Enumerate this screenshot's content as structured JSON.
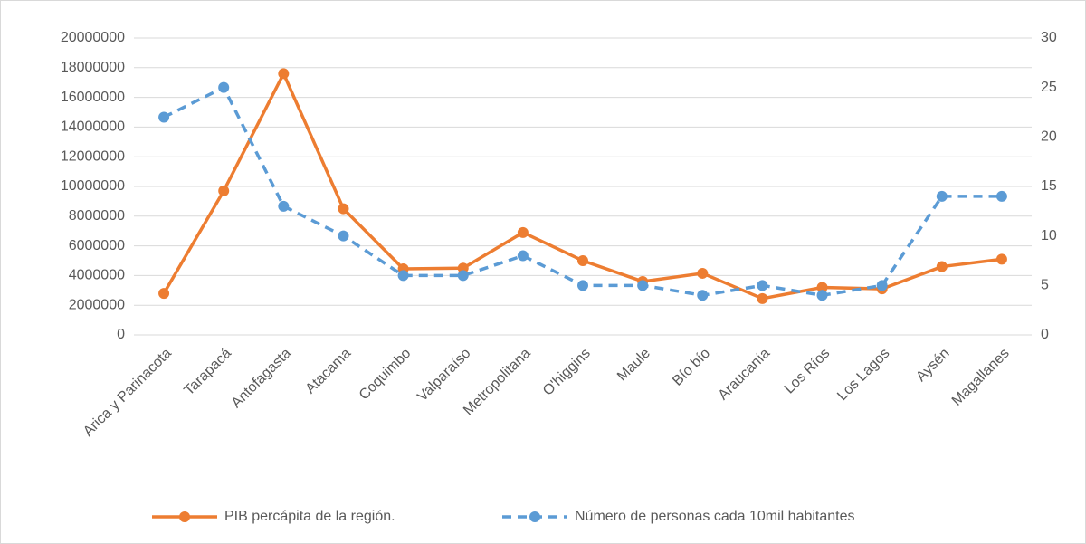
{
  "chart_data": {
    "type": "line",
    "categories": [
      "Arica y Parinacota",
      "Tarapacá",
      "Antofagasta",
      "Atacama",
      "Coquimbo",
      "Valparaíso",
      "Metropolitana",
      "O'higgins",
      "Maule",
      "Bío bío",
      "Araucanía",
      "Los Ríos",
      "Los Lagos",
      "Aysén",
      "Magallanes"
    ],
    "series": [
      {
        "name": "PIB percápita de la región.",
        "color": "#ed7d31",
        "dashed": false,
        "values": [
          2800000,
          9700000,
          17600000,
          8500000,
          4450000,
          4500000,
          6900000,
          5000000,
          3600000,
          4150000,
          2450000,
          3200000,
          3100000,
          4600000,
          5100000
        ]
      },
      {
        "name": "Número de personas cada 10mil habitantes",
        "color": "#5b9bd5",
        "dashed": true,
        "axis": "y2",
        "values": [
          22,
          25,
          13,
          10,
          6,
          6,
          8,
          5,
          5,
          4,
          5,
          4,
          5,
          14,
          14
        ]
      }
    ],
    "ylim": [
      0,
      20000000
    ],
    "yticks": [
      0,
      2000000,
      4000000,
      6000000,
      8000000,
      10000000,
      12000000,
      14000000,
      16000000,
      18000000,
      20000000
    ],
    "y2lim": [
      0,
      30
    ],
    "y2ticks": [
      0,
      5,
      10,
      15,
      20,
      25,
      30
    ],
    "grid": true,
    "legend": "bottom"
  }
}
